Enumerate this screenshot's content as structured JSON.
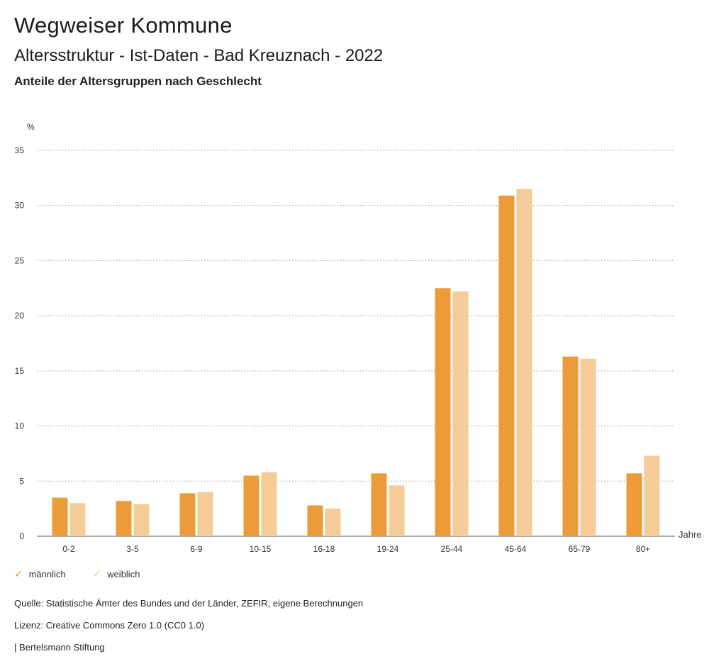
{
  "header": {
    "title": "Wegweiser Kommune",
    "subtitle": "Altersstruktur - Ist-Daten - Bad Kreuznach - 2022",
    "subsubtitle": "Anteile der Altersgruppen nach Geschlecht"
  },
  "chart_data": {
    "type": "bar",
    "ylabel": "%",
    "xlabel": "Jahre",
    "ylim": [
      0,
      35
    ],
    "yticks": [
      0,
      5,
      10,
      15,
      20,
      25,
      30,
      35
    ],
    "grid": true,
    "legend_placement": "bottom-left",
    "categories": [
      "0-2",
      "3-5",
      "6-9",
      "10-15",
      "16-18",
      "19-24",
      "25-44",
      "45-64",
      "65-79",
      "80+"
    ],
    "series": [
      {
        "name": "männlich",
        "color": "#ed9a38",
        "values": [
          3.5,
          3.2,
          3.9,
          5.5,
          2.8,
          5.7,
          22.5,
          30.9,
          16.3,
          5.7
        ]
      },
      {
        "name": "weiblich",
        "color": "#f5cb98",
        "values": [
          3.0,
          2.9,
          4.0,
          5.8,
          2.5,
          4.6,
          22.2,
          31.5,
          16.1,
          7.3
        ]
      }
    ]
  },
  "legend": {
    "items": [
      {
        "label": "männlich",
        "color": "#ed9a38"
      },
      {
        "label": "weiblich",
        "color": "#f5cb98"
      }
    ]
  },
  "footer": {
    "source": "Quelle: Statistische Ämter des Bundes und der Länder, ZEFIR, eigene Berechnungen",
    "license": "Lizenz: Creative Commons Zero 1.0 (CC0 1.0)",
    "brand": "| Bertelsmann Stiftung"
  }
}
